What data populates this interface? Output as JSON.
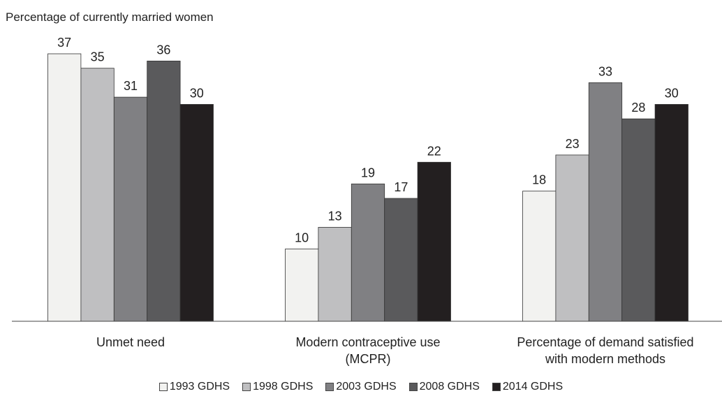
{
  "chart_data": {
    "type": "bar",
    "y_axis_label": "Percentage of currently married women",
    "categories": [
      "Unmet need",
      "Modern contraceptive use\n(MCPR)",
      "Percentage of demand satisfied\nwith modern methods"
    ],
    "series": [
      {
        "name": "1993 GDHS",
        "color": "#f2f2f0",
        "values": [
          37,
          10,
          18
        ]
      },
      {
        "name": "1998 GDHS",
        "color": "#bfbfc1",
        "values": [
          35,
          13,
          23
        ]
      },
      {
        "name": "2003 GDHS",
        "color": "#808083",
        "values": [
          31,
          19,
          33
        ]
      },
      {
        "name": "2008 GDHS",
        "color": "#5a5a5c",
        "values": [
          36,
          17,
          28
        ]
      },
      {
        "name": "2014 GDHS",
        "color": "#231f20",
        "values": [
          30,
          22,
          30
        ]
      }
    ],
    "ylim": [
      0,
      37
    ],
    "legend": "bottom"
  }
}
